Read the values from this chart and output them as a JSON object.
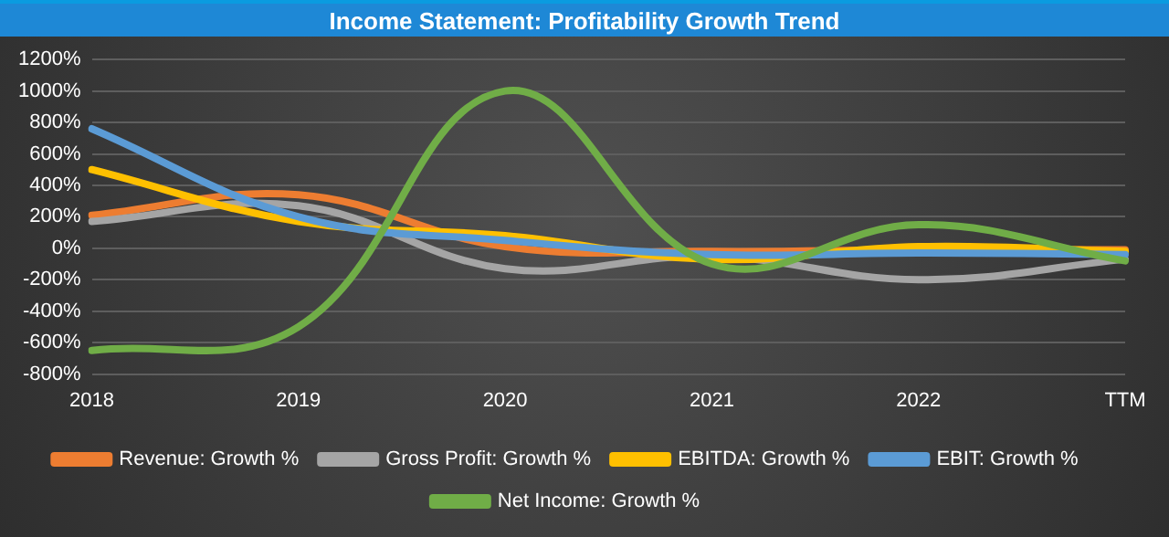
{
  "chart_data": {
    "type": "line",
    "title": "Income Statement: Profitability Growth Trend",
    "categories": [
      "2018",
      "2019",
      "2020",
      "2021",
      "2022",
      "TTM"
    ],
    "series": [
      {
        "name": "Revenue: Growth %",
        "color": "#ed7d31",
        "values": [
          210,
          340,
          10,
          -20,
          -10,
          -10
        ]
      },
      {
        "name": "Gross Profit: Growth %",
        "color": "#a5a5a5",
        "values": [
          170,
          270,
          -130,
          -50,
          -200,
          -70
        ]
      },
      {
        "name": "EBITDA: Growth %",
        "color": "#ffc000",
        "values": [
          500,
          170,
          80,
          -70,
          10,
          -20
        ]
      },
      {
        "name": "EBIT: Growth %",
        "color": "#5b9bd5",
        "values": [
          760,
          200,
          50,
          -40,
          -30,
          -40
        ]
      },
      {
        "name": "Net Income: Growth %",
        "color": "#70ad47",
        "values": [
          -650,
          -500,
          1000,
          -100,
          150,
          -80
        ]
      }
    ],
    "ylim": [
      -800,
      1200
    ],
    "yticks": [
      {
        "value": -800,
        "label": "-800%"
      },
      {
        "value": -600,
        "label": "-600%"
      },
      {
        "value": -400,
        "label": "-400%"
      },
      {
        "value": -200,
        "label": "-200%"
      },
      {
        "value": 0,
        "label": "0%"
      },
      {
        "value": 200,
        "label": "200%"
      },
      {
        "value": 400,
        "label": "400%"
      },
      {
        "value": 600,
        "label": "600%"
      },
      {
        "value": 800,
        "label": "800%"
      },
      {
        "value": 1000,
        "label": "1000%"
      },
      {
        "value": 1200,
        "label": "1200%"
      }
    ],
    "grid": "y",
    "legend": "bottom",
    "marker": "none",
    "line_style": "solid"
  }
}
